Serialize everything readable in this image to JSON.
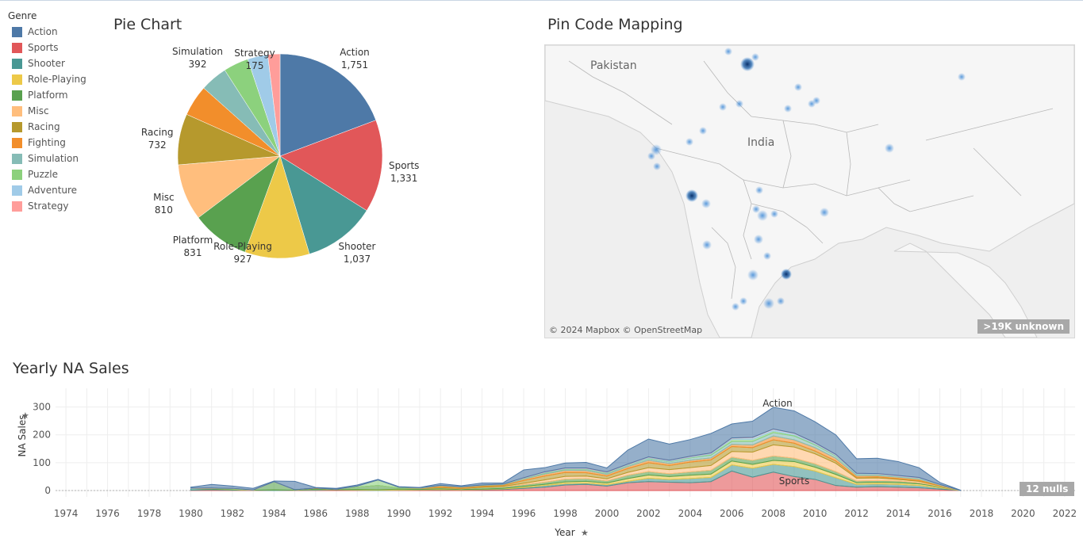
{
  "legend": {
    "title": "Genre",
    "items": [
      {
        "label": "Action",
        "color": "#4e79a7"
      },
      {
        "label": "Sports",
        "color": "#e15759"
      },
      {
        "label": "Shooter",
        "color": "#499894"
      },
      {
        "label": "Role-Playing",
        "color": "#edc948"
      },
      {
        "label": "Platform",
        "color": "#59a14f"
      },
      {
        "label": "Misc",
        "color": "#ffbe7d"
      },
      {
        "label": "Racing",
        "color": "#b6992d"
      },
      {
        "label": "Fighting",
        "color": "#f28e2b"
      },
      {
        "label": "Simulation",
        "color": "#86bcb6"
      },
      {
        "label": "Puzzle",
        "color": "#8cd17d"
      },
      {
        "label": "Adventure",
        "color": "#a0cbe8"
      },
      {
        "label": "Strategy",
        "color": "#ff9d9a"
      }
    ]
  },
  "pie": {
    "title": "Pie Chart",
    "labels": [
      {
        "name": "Action",
        "value": "1,751"
      },
      {
        "name": "Sports",
        "value": "1,331"
      },
      {
        "name": "Shooter",
        "value": "1,037"
      },
      {
        "name": "Role-Playing",
        "value": "927"
      },
      {
        "name": "Platform",
        "value": "831"
      },
      {
        "name": "Misc",
        "value": "810"
      },
      {
        "name": "Racing",
        "value": "732"
      },
      {
        "name": "Simulation",
        "value": "392"
      },
      {
        "name": "Strategy",
        "value": "175"
      }
    ]
  },
  "map": {
    "title": "Pin Code Mapping",
    "labels": [
      "Pakistan",
      "India"
    ],
    "attribution": "© 2024 Mapbox © OpenStreetMap",
    "unknown": ">19K unknown"
  },
  "area": {
    "title": "Yearly NA Sales",
    "ylabel": "NA Sales",
    "xlabel": "Year",
    "nulls": "12 nulls",
    "annotations": [
      "Action",
      "Sports"
    ]
  },
  "chart_data": [
    {
      "type": "pie",
      "title": "Pie Chart",
      "categories": [
        "Action",
        "Sports",
        "Shooter",
        "Role-Playing",
        "Platform",
        "Misc",
        "Racing",
        "Fighting",
        "Simulation",
        "Puzzle",
        "Adventure",
        "Strategy"
      ],
      "values": [
        1751,
        1331,
        1037,
        927,
        831,
        810,
        732,
        445,
        392,
        360,
        290,
        175
      ]
    },
    {
      "type": "area",
      "title": "Yearly NA Sales",
      "xlabel": "Year",
      "ylabel": "NA Sales",
      "ylim": [
        0,
        350
      ],
      "yticks": [
        0,
        100,
        200,
        300
      ],
      "xticks": [
        1974,
        1976,
        1978,
        1980,
        1982,
        1984,
        1986,
        1988,
        1990,
        1992,
        1994,
        1996,
        1998,
        2000,
        2002,
        2004,
        2006,
        2008,
        2010,
        2012,
        2014,
        2016,
        2018,
        2020,
        2022
      ],
      "x": [
        1980,
        1981,
        1982,
        1983,
        1984,
        1985,
        1986,
        1987,
        1988,
        1989,
        1990,
        1991,
        1992,
        1993,
        1994,
        1995,
        1996,
        1997,
        1998,
        1999,
        2000,
        2001,
        2002,
        2003,
        2004,
        2005,
        2006,
        2007,
        2008,
        2009,
        2010,
        2011,
        2012,
        2013,
        2014,
        2015,
        2016,
        2017
      ],
      "stacked": true,
      "series": [
        {
          "name": "Sports",
          "color": "#e15759",
          "values": [
            1,
            3,
            1,
            1,
            0,
            1,
            1,
            3,
            1,
            0,
            1,
            2,
            3,
            2,
            3,
            4,
            8,
            12,
            20,
            22,
            16,
            28,
            32,
            30,
            28,
            32,
            70,
            48,
            66,
            50,
            40,
            18,
            12,
            14,
            12,
            10,
            5,
            0
          ]
        },
        {
          "name": "Shooter",
          "color": "#499894",
          "values": [
            6,
            3,
            2,
            0,
            2,
            0,
            3,
            0,
            1,
            1,
            1,
            1,
            1,
            1,
            1,
            2,
            3,
            6,
            5,
            5,
            5,
            5,
            12,
            10,
            15,
            15,
            22,
            32,
            28,
            36,
            30,
            28,
            10,
            10,
            10,
            8,
            5,
            0
          ]
        },
        {
          "name": "Role-Playing",
          "color": "#edc948",
          "values": [
            0,
            0,
            0,
            0,
            0,
            0,
            1,
            0,
            2,
            2,
            3,
            1,
            2,
            1,
            1,
            2,
            4,
            4,
            6,
            6,
            6,
            10,
            12,
            10,
            12,
            12,
            14,
            14,
            14,
            18,
            14,
            12,
            6,
            6,
            6,
            6,
            3,
            0
          ]
        },
        {
          "name": "Platform",
          "color": "#59a14f",
          "values": [
            0,
            2,
            2,
            0,
            30,
            2,
            3,
            2,
            8,
            15,
            4,
            3,
            4,
            2,
            6,
            5,
            6,
            8,
            10,
            10,
            8,
            12,
            12,
            10,
            12,
            14,
            14,
            14,
            16,
            12,
            12,
            10,
            6,
            6,
            6,
            4,
            2,
            0
          ]
        },
        {
          "name": "Misc",
          "color": "#ffbe7d",
          "values": [
            1,
            1,
            1,
            1,
            0,
            0,
            0,
            0,
            0,
            0,
            0,
            0,
            1,
            1,
            1,
            2,
            5,
            8,
            10,
            9,
            7,
            10,
            14,
            15,
            15,
            17,
            20,
            30,
            40,
            40,
            36,
            30,
            10,
            9,
            6,
            5,
            2,
            0
          ]
        },
        {
          "name": "Racing",
          "color": "#b6992d",
          "values": [
            0,
            0,
            0,
            0,
            0,
            0,
            0,
            0,
            0,
            0,
            0,
            0,
            2,
            2,
            3,
            3,
            10,
            14,
            14,
            12,
            10,
            14,
            18,
            15,
            20,
            20,
            18,
            16,
            18,
            14,
            10,
            8,
            4,
            4,
            3,
            3,
            1,
            0
          ]
        },
        {
          "name": "Fighting",
          "color": "#f28e2b",
          "values": [
            0,
            0,
            0,
            0,
            0,
            0,
            1,
            0,
            0,
            0,
            0,
            1,
            4,
            3,
            3,
            3,
            5,
            7,
            8,
            8,
            6,
            7,
            9,
            7,
            7,
            7,
            8,
            10,
            14,
            12,
            12,
            10,
            6,
            5,
            5,
            5,
            2,
            0
          ]
        },
        {
          "name": "Simulation",
          "color": "#86bcb6",
          "values": [
            0,
            0,
            0,
            0,
            0,
            0,
            0,
            0,
            0,
            0,
            0,
            1,
            1,
            1,
            1,
            1,
            2,
            3,
            3,
            4,
            4,
            5,
            6,
            6,
            8,
            10,
            10,
            12,
            12,
            14,
            10,
            8,
            4,
            3,
            2,
            2,
            1,
            0
          ]
        },
        {
          "name": "Puzzle",
          "color": "#8cd17d",
          "values": [
            0,
            0,
            2,
            0,
            0,
            0,
            0,
            0,
            4,
            20,
            3,
            1,
            1,
            1,
            1,
            1,
            1,
            2,
            2,
            2,
            2,
            1,
            2,
            2,
            2,
            4,
            8,
            8,
            6,
            4,
            3,
            2,
            1,
            1,
            1,
            1,
            0,
            0
          ]
        },
        {
          "name": "Adventure",
          "color": "#a0cbe8",
          "values": [
            1,
            0,
            0,
            0,
            0,
            0,
            0,
            0,
            0,
            0,
            0,
            0,
            0,
            0,
            0,
            0,
            1,
            2,
            2,
            2,
            2,
            2,
            3,
            3,
            3,
            3,
            4,
            6,
            6,
            5,
            4,
            3,
            2,
            2,
            2,
            2,
            1,
            0
          ]
        },
        {
          "name": "Strategy",
          "color": "#ff9d9a",
          "values": [
            0,
            0,
            0,
            0,
            0,
            0,
            0,
            0,
            0,
            0,
            0,
            0,
            0,
            0,
            0,
            0,
            1,
            1,
            1,
            1,
            1,
            1,
            1,
            1,
            1,
            1,
            1,
            1,
            1,
            1,
            1,
            1,
            1,
            1,
            1,
            1,
            0,
            0
          ]
        },
        {
          "name": "Action",
          "color": "#4e79a7",
          "values": [
            3,
            13,
            8,
            6,
            2,
            30,
            2,
            3,
            4,
            2,
            2,
            1,
            6,
            3,
            7,
            4,
            28,
            15,
            18,
            20,
            14,
            50,
            64,
            58,
            60,
            70,
            50,
            58,
            78,
            80,
            75,
            70,
            52,
            55,
            50,
            35,
            7,
            1
          ]
        }
      ]
    }
  ]
}
